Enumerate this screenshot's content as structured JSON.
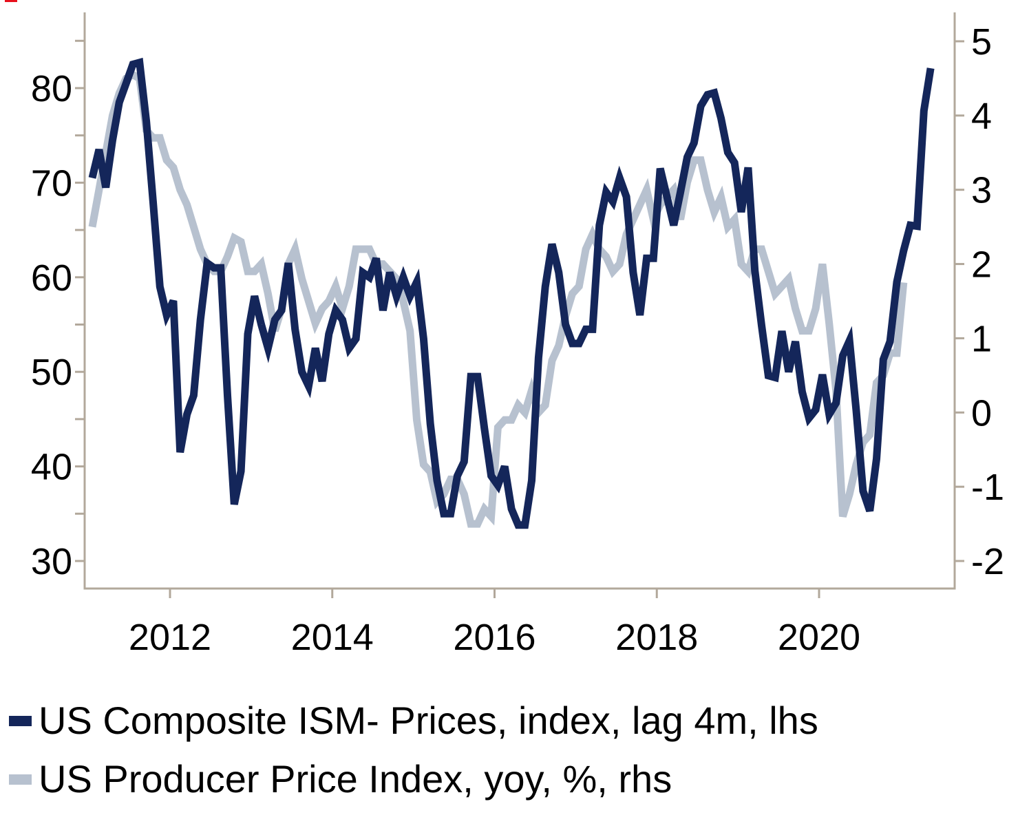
{
  "colors": {
    "navy": "#14265a",
    "gray": "#b7c1cf",
    "axis": "#b2a89b",
    "text": "#000000",
    "red_artifact": "#e8101c",
    "background": "#ffffff"
  },
  "legend": {
    "items": [
      {
        "label": "US Composite ISM- Prices, index, lag 4m, lhs",
        "color": "#14265a"
      },
      {
        "label": "US Producer Price Index, yoy, %, rhs",
        "color": "#b7c1cf"
      }
    ]
  },
  "chart_data": {
    "type": "line",
    "title": "",
    "xlabel": "",
    "ylabel_left": "",
    "ylabel_right": "",
    "grid": false,
    "legend_position": "bottom-left",
    "x_axis": {
      "kind": "time-years",
      "range": [
        2010.95,
        2021.72
      ],
      "tick_labels": [
        "2012",
        "2014",
        "2016",
        "2018",
        "2020"
      ],
      "tick_values": [
        2012,
        2014,
        2016,
        2018,
        2020
      ]
    },
    "left_axis": {
      "range_at_plot_edges": [
        26.9,
        88.0
      ],
      "tick_values": [
        30,
        35,
        40,
        45,
        50,
        55,
        60,
        65,
        70,
        75,
        80,
        85
      ],
      "labeled_ticks": [
        30,
        40,
        50,
        60,
        70,
        80
      ]
    },
    "right_axis": {
      "range_at_plot_edges": [
        -2.37,
        5.39
      ],
      "tick_values": [
        -2,
        -1,
        0,
        1,
        2,
        3,
        4,
        5
      ],
      "labeled_ticks": [
        -2,
        -1,
        0,
        1,
        2,
        3,
        4,
        5
      ]
    },
    "series": [
      {
        "name": "US Composite ISM- Prices, index, lag 4m, lhs",
        "axis": "lhs",
        "color": "#14265a",
        "start_year_fraction": 2011.0417,
        "step_years": 0.0833333,
        "values": [
          70.5,
          73.5,
          69.5,
          74.5,
          78.5,
          80.5,
          82.5,
          82.7,
          76.5,
          68,
          59,
          56,
          57.5,
          41.5,
          45.5,
          47.5,
          55.5,
          61.5,
          61,
          61,
          47.5,
          36,
          39.5,
          54,
          58,
          55,
          52.5,
          55.5,
          56.5,
          61.5,
          54.5,
          50,
          48.5,
          52.5,
          49,
          54,
          56.5,
          55.5,
          52.5,
          53.5,
          60.5,
          60,
          62,
          56.5,
          60.5,
          58,
          60,
          58,
          59.5,
          53.5,
          44.5,
          38.5,
          35,
          35,
          39,
          40.5,
          49.5,
          49.5,
          44,
          39,
          38,
          40,
          35.5,
          33.8,
          33.8,
          38.5,
          51.5,
          59,
          63.5,
          60.5,
          55,
          53,
          53,
          54.5,
          54.5,
          65.5,
          69,
          68,
          70.5,
          68.5,
          60.5,
          56,
          62,
          62,
          71.5,
          68.5,
          65.5,
          69,
          72.7,
          74.2,
          78.1,
          79.3,
          79.5,
          76.8,
          73.2,
          72.1,
          66.9,
          71.6,
          60.7,
          54.9,
          49.6,
          49.4,
          54.3,
          50,
          53.2,
          47.9,
          45.1,
          46,
          49.7,
          45.5,
          46.7,
          51.7,
          53.3,
          45.9,
          37.4,
          35.3,
          40.8,
          51.3,
          53.2,
          59.5,
          62.8,
          65.5,
          65.4,
          77.6,
          82.1
        ]
      },
      {
        "name": "US Producer Price Index, yoy, %, rhs",
        "axis": "rhs",
        "color": "#b7c1cf",
        "start_year_fraction": 2011.0417,
        "step_years": 0.0833333,
        "values": [
          2.5,
          3.0,
          3.5,
          4.0,
          4.3,
          4.5,
          4.55,
          4.5,
          3.8,
          3.7,
          3.7,
          3.4,
          3.3,
          3.0,
          2.8,
          2.5,
          2.2,
          2.0,
          1.9,
          1.9,
          2.1,
          2.35,
          2.3,
          1.9,
          1.9,
          2.0,
          1.6,
          1.1,
          1.4,
          2.0,
          2.2,
          1.8,
          1.5,
          1.2,
          1.4,
          1.5,
          1.7,
          1.4,
          1.7,
          2.2,
          2.2,
          2.2,
          2.0,
          2.0,
          1.9,
          1.8,
          1.5,
          1.1,
          -0.1,
          -0.7,
          -0.8,
          -1.2,
          -1.1,
          -0.9,
          -0.9,
          -1.1,
          -1.5,
          -1.5,
          -1.3,
          -1.4,
          -0.2,
          -0.1,
          -0.1,
          0.1,
          0.0,
          0.3,
          0.0,
          0.1,
          0.7,
          0.9,
          1.3,
          1.6,
          1.7,
          2.2,
          2.4,
          2.2,
          2.1,
          1.9,
          2.0,
          2.4,
          2.6,
          2.8,
          3.0,
          2.6,
          2.8,
          2.9,
          3.0,
          2.6,
          3.1,
          3.4,
          3.4,
          3.0,
          2.7,
          2.9,
          2.5,
          2.6,
          2.0,
          1.9,
          2.2,
          2.2,
          1.9,
          1.6,
          1.7,
          1.8,
          1.4,
          1.1,
          1.1,
          1.4,
          2.0,
          1.2,
          0.3,
          -1.4,
          -1.1,
          -0.7,
          -0.4,
          -0.3,
          0.4,
          0.5,
          0.8,
          0.8,
          1.75
        ]
      }
    ]
  }
}
